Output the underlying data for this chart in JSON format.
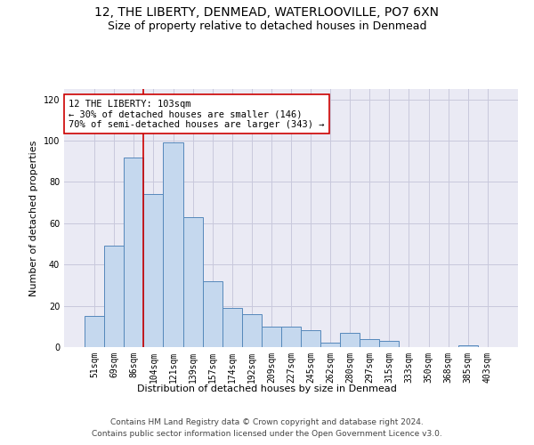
{
  "title_line1": "12, THE LIBERTY, DENMEAD, WATERLOOVILLE, PO7 6XN",
  "title_line2": "Size of property relative to detached houses in Denmead",
  "xlabel": "Distribution of detached houses by size in Denmead",
  "ylabel": "Number of detached properties",
  "categories": [
    "51sqm",
    "69sqm",
    "86sqm",
    "104sqm",
    "121sqm",
    "139sqm",
    "157sqm",
    "174sqm",
    "192sqm",
    "209sqm",
    "227sqm",
    "245sqm",
    "262sqm",
    "280sqm",
    "297sqm",
    "315sqm",
    "333sqm",
    "350sqm",
    "368sqm",
    "385sqm",
    "403sqm"
  ],
  "values": [
    15,
    49,
    92,
    74,
    99,
    63,
    32,
    19,
    16,
    10,
    10,
    8,
    2,
    7,
    4,
    3,
    0,
    0,
    0,
    1,
    0
  ],
  "bar_color": "#c5d8ee",
  "bar_edge_color": "#5588bb",
  "vline_color": "#cc0000",
  "box_edge_color": "#cc0000",
  "ylim": [
    0,
    125
  ],
  "yticks": [
    0,
    20,
    40,
    60,
    80,
    100,
    120
  ],
  "grid_color": "#c8c8dc",
  "bg_color": "#eaeaf4",
  "annotation_line1": "12 THE LIBERTY: 103sqm",
  "annotation_line2": "← 30% of detached houses are smaller (146)",
  "annotation_line3": "70% of semi-detached houses are larger (343) →",
  "footer_line1": "Contains HM Land Registry data © Crown copyright and database right 2024.",
  "footer_line2": "Contains public sector information licensed under the Open Government Licence v3.0.",
  "title_fontsize": 10,
  "subtitle_fontsize": 9,
  "ylabel_fontsize": 8,
  "xlabel_fontsize": 8,
  "tick_fontsize": 7,
  "annotation_fontsize": 7.5,
  "footer_fontsize": 6.5
}
